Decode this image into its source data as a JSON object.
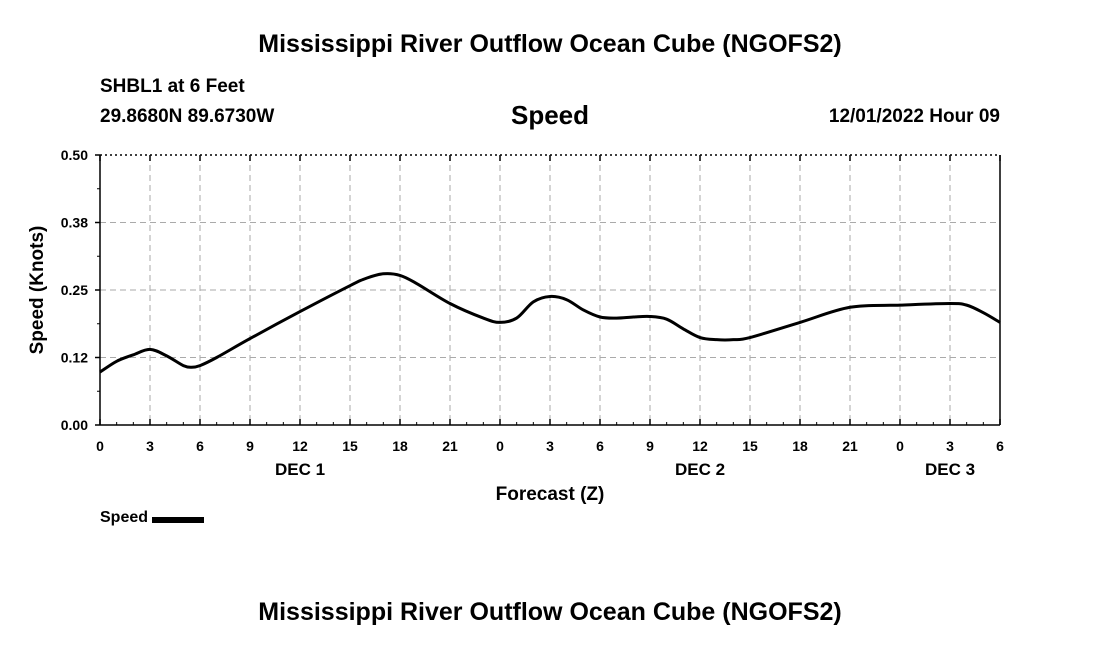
{
  "page": {
    "title": "Mississippi River Outflow Ocean Cube (NGOFS2)",
    "title_repeat": "Mississippi River Outflow Ocean Cube (NGOFS2)",
    "station": "SHBL1 at 6 Feet",
    "coordinates": "29.8680N  89.6730W",
    "datetime": "12/01/2022 Hour 09"
  },
  "chart_data": {
    "type": "line",
    "title": "Speed",
    "xlabel": "Forecast (Z)",
    "ylabel": "Speed (Knots)",
    "ylim": [
      0,
      0.5
    ],
    "xlim": [
      0,
      54
    ],
    "x_unit": "hours from 12/01/2022 00Z",
    "yticks": [
      "0.00",
      "0.12",
      "0.25",
      "0.38",
      "0.50"
    ],
    "ytick_values": [
      0,
      0.125,
      0.25,
      0.375,
      0.5
    ],
    "xticks": [
      "0",
      "3",
      "6",
      "9",
      "12",
      "15",
      "18",
      "21",
      "0",
      "3",
      "6",
      "9",
      "12",
      "15",
      "18",
      "21",
      "0",
      "3",
      "6"
    ],
    "xtick_values": [
      0,
      3,
      6,
      9,
      12,
      15,
      18,
      21,
      24,
      27,
      30,
      33,
      36,
      39,
      42,
      45,
      48,
      51,
      54
    ],
    "date_labels": [
      {
        "label": "DEC 1",
        "x": 12
      },
      {
        "label": "DEC 2",
        "x": 36
      },
      {
        "label": "DEC 3",
        "x": 51
      }
    ],
    "grid": true,
    "legend_position": "bottom-left",
    "series": [
      {
        "name": "Speed",
        "color": "#000000",
        "x": [
          0,
          1,
          2,
          3,
          4,
          5,
          5.5,
          6,
          7,
          9,
          12,
          15,
          16,
          17,
          18,
          19,
          21,
          23,
          24,
          25,
          26,
          27,
          28,
          29,
          30,
          31,
          32,
          33,
          34,
          35,
          36,
          37,
          38,
          39,
          42,
          45,
          48,
          51,
          52,
          53,
          54
        ],
        "values": [
          0.098,
          0.118,
          0.13,
          0.14,
          0.128,
          0.11,
          0.107,
          0.11,
          0.125,
          0.16,
          0.21,
          0.258,
          0.272,
          0.28,
          0.277,
          0.262,
          0.225,
          0.198,
          0.19,
          0.198,
          0.228,
          0.238,
          0.232,
          0.213,
          0.2,
          0.198,
          0.2,
          0.201,
          0.196,
          0.178,
          0.162,
          0.158,
          0.158,
          0.162,
          0.19,
          0.218,
          0.222,
          0.225,
          0.222,
          0.208,
          0.19
        ]
      }
    ]
  },
  "legend": {
    "label": "Speed"
  }
}
